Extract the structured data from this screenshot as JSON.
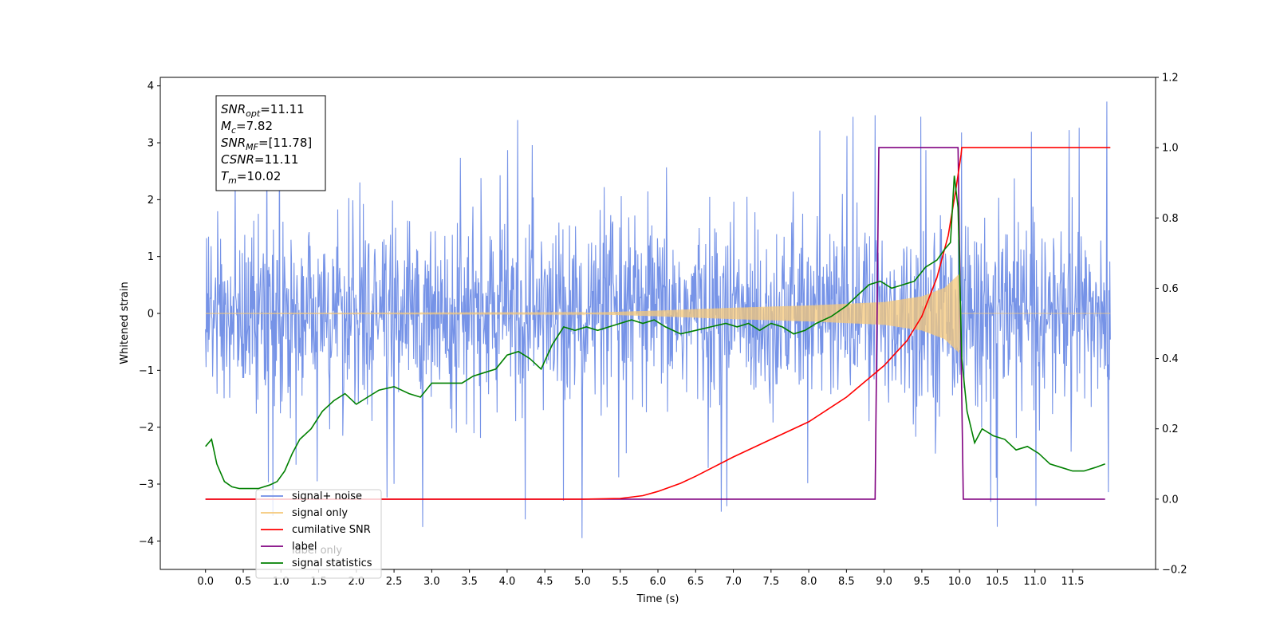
{
  "chart_data": {
    "type": "line",
    "xlabel": "Time (s)",
    "ylabel": "Whitened strain",
    "xlim": [
      -0.6,
      12.6
    ],
    "ylim": [
      -4.5,
      4.15
    ],
    "y2lim": [
      -0.2,
      1.2
    ],
    "x_ticks": [
      "0.0",
      "0.5",
      "1.0",
      "1.5",
      "2.0",
      "2.5",
      "3.0",
      "3.5",
      "4.0",
      "4.5",
      "5.0",
      "5.5",
      "6.0",
      "6.5",
      "7.0",
      "7.5",
      "8.0",
      "8.5",
      "9.0",
      "9.5",
      "10.0",
      "10.5",
      "11.0",
      "11.5"
    ],
    "y_ticks": [
      "−4",
      "−3",
      "−2",
      "−1",
      "0",
      "1",
      "2",
      "3",
      "4"
    ],
    "y2_ticks": [
      "−0.2",
      "0.0",
      "0.2",
      "0.4",
      "0.6",
      "0.8",
      "1.0",
      "1.2"
    ],
    "grid": false,
    "legend_placement": "lower-left",
    "info_box": {
      "lines": [
        {
          "sym": "SNR",
          "sub": "opt",
          "val": "=11.11"
        },
        {
          "sym": "M",
          "sub": "c",
          "val": "=7.82"
        },
        {
          "sym": "SNR",
          "sub": "MF",
          "val": "=[11.78]"
        },
        {
          "sym": "CSNR",
          "sub": "",
          "val": "=11.11"
        },
        {
          "sym": "T",
          "sub": "m",
          "val": "=10.02"
        }
      ]
    },
    "legend_hidden_text": "label only",
    "series": [
      {
        "name": "signal+ noise",
        "axis": "left",
        "color": "#6f8de6",
        "kind": "noise",
        "x_range": [
          0.0,
          12.0
        ],
        "typical_range": [
          -1.8,
          1.8
        ],
        "peak_range": [
          -4.1,
          3.78
        ]
      },
      {
        "name": "signal only",
        "axis": "left",
        "color": "#f5c87a",
        "kind": "chirp",
        "merger_time": 10.02,
        "envelope": [
          [
            0.0,
            0.002
          ],
          [
            5.0,
            0.01
          ],
          [
            6.0,
            0.05
          ],
          [
            7.0,
            0.1
          ],
          [
            8.0,
            0.14
          ],
          [
            8.5,
            0.17
          ],
          [
            9.0,
            0.2
          ],
          [
            9.5,
            0.3
          ],
          [
            9.8,
            0.45
          ],
          [
            10.0,
            0.7
          ],
          [
            10.02,
            0.0
          ],
          [
            12.0,
            0.0
          ]
        ]
      },
      {
        "name": "cumilative SNR",
        "axis": "right",
        "color": "#ff0000",
        "x": [
          0.0,
          5.0,
          5.5,
          5.8,
          6.0,
          6.3,
          6.5,
          7.0,
          7.5,
          8.0,
          8.5,
          9.0,
          9.3,
          9.5,
          9.7,
          9.85,
          9.95,
          10.02,
          10.03,
          12.0
        ],
        "y": [
          0.0,
          0.0,
          0.002,
          0.01,
          0.022,
          0.045,
          0.065,
          0.12,
          0.17,
          0.22,
          0.29,
          0.38,
          0.45,
          0.52,
          0.63,
          0.75,
          0.88,
          0.98,
          1.0,
          1.0
        ]
      },
      {
        "name": "label",
        "axis": "right",
        "color": "#800080",
        "x": [
          0.0,
          8.88,
          8.93,
          9.98,
          10.05,
          11.93
        ],
        "y": [
          0.0,
          0.0,
          1.0,
          1.0,
          0.0,
          0.0
        ]
      },
      {
        "name": "signal statistics",
        "axis": "right",
        "color": "#008000",
        "x": [
          0.0,
          0.08,
          0.15,
          0.25,
          0.35,
          0.45,
          0.55,
          0.7,
          0.85,
          0.95,
          1.05,
          1.15,
          1.25,
          1.4,
          1.55,
          1.7,
          1.85,
          2.0,
          2.15,
          2.3,
          2.5,
          2.7,
          2.85,
          3.0,
          3.2,
          3.4,
          3.55,
          3.7,
          3.85,
          4.0,
          4.15,
          4.3,
          4.45,
          4.6,
          4.75,
          4.9,
          5.05,
          5.2,
          5.35,
          5.5,
          5.65,
          5.8,
          5.95,
          6.1,
          6.3,
          6.5,
          6.7,
          6.9,
          7.05,
          7.2,
          7.35,
          7.5,
          7.65,
          7.8,
          7.95,
          8.1,
          8.3,
          8.5,
          8.65,
          8.8,
          8.95,
          9.1,
          9.25,
          9.4,
          9.55,
          9.7,
          9.8,
          9.88,
          9.93,
          9.98,
          10.03,
          10.1,
          10.2,
          10.3,
          10.45,
          10.6,
          10.75,
          10.9,
          11.05,
          11.2,
          11.35,
          11.5,
          11.65,
          11.8,
          11.93
        ],
        "y": [
          0.15,
          0.17,
          0.1,
          0.05,
          0.035,
          0.03,
          0.03,
          0.03,
          0.04,
          0.05,
          0.08,
          0.13,
          0.17,
          0.2,
          0.25,
          0.28,
          0.3,
          0.27,
          0.29,
          0.31,
          0.32,
          0.3,
          0.29,
          0.33,
          0.33,
          0.33,
          0.35,
          0.36,
          0.37,
          0.41,
          0.42,
          0.4,
          0.37,
          0.44,
          0.49,
          0.48,
          0.49,
          0.48,
          0.49,
          0.5,
          0.51,
          0.5,
          0.51,
          0.49,
          0.47,
          0.48,
          0.49,
          0.5,
          0.49,
          0.5,
          0.48,
          0.5,
          0.49,
          0.47,
          0.48,
          0.5,
          0.52,
          0.55,
          0.58,
          0.61,
          0.62,
          0.6,
          0.61,
          0.62,
          0.66,
          0.68,
          0.71,
          0.73,
          0.92,
          0.83,
          0.4,
          0.25,
          0.16,
          0.2,
          0.18,
          0.17,
          0.14,
          0.15,
          0.13,
          0.1,
          0.09,
          0.08,
          0.08,
          0.09,
          0.1
        ]
      }
    ]
  }
}
